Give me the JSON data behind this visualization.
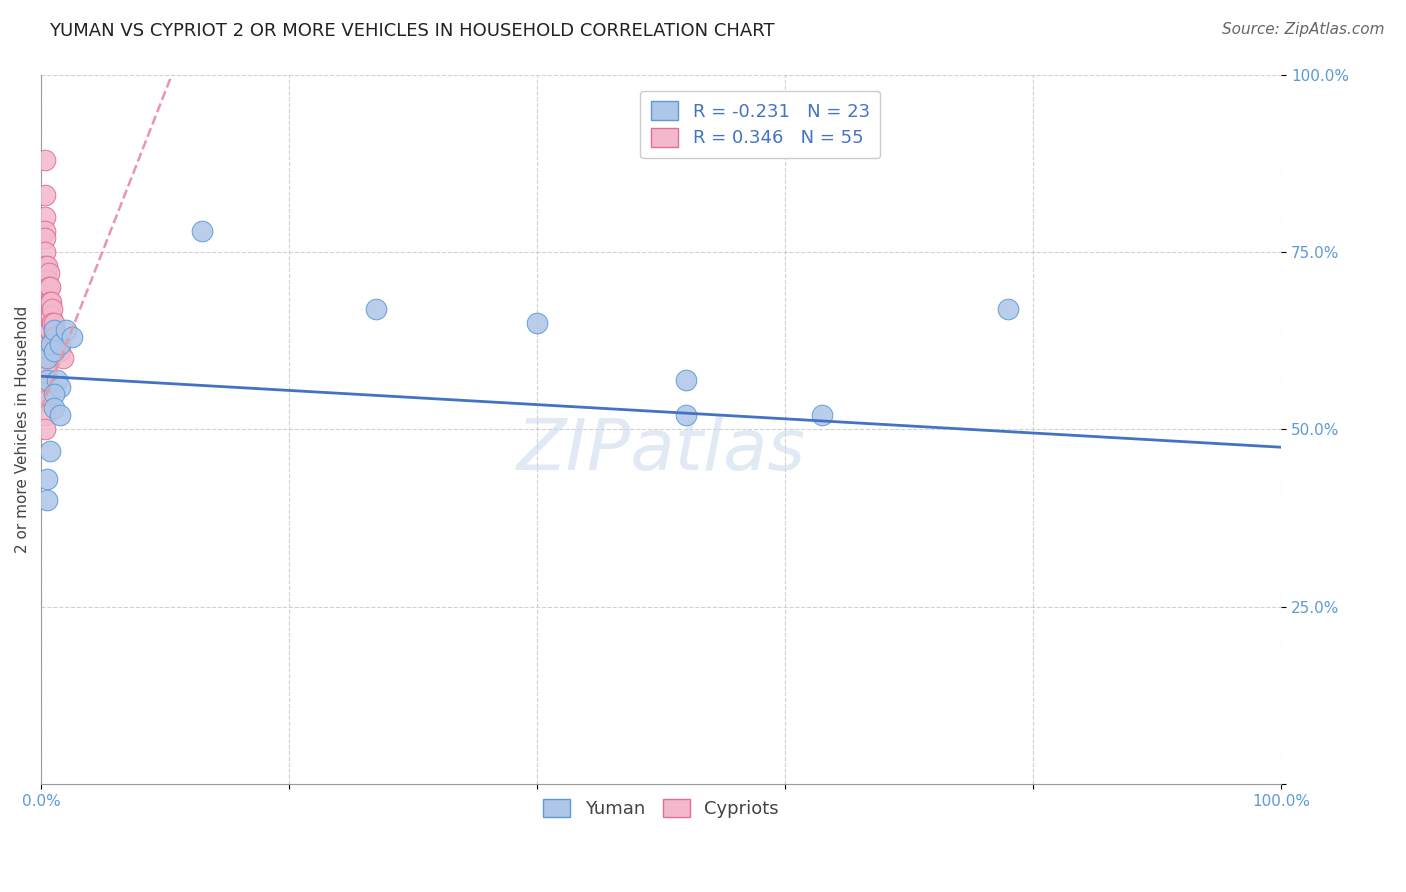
{
  "title": "YUMAN VS CYPRIOT 2 OR MORE VEHICLES IN HOUSEHOLD CORRELATION CHART",
  "source": "Source: ZipAtlas.com",
  "ylabel": "2 or more Vehicles in Household",
  "watermark": "ZIPatlas",
  "yuman_R": -0.231,
  "yuman_N": 23,
  "cypriot_R": 0.346,
  "cypriot_N": 55,
  "yuman_color": "#aec6e8",
  "cypriot_color": "#f4b8cc",
  "yuman_edge_color": "#5b9bd5",
  "cypriot_edge_color": "#e07090",
  "yuman_line_color": "#4472c4",
  "cypriot_line_color": "#e896a8",
  "legend_text_color": "#4472c4",
  "tick_color": "#5b9bd5",
  "title_color": "#222222",
  "source_color": "#666666",
  "ylabel_color": "#444444",
  "grid_color": "#cccccc",
  "xlim": [
    0.0,
    1.0
  ],
  "ylim": [
    0.0,
    1.0
  ],
  "yuman_x": [
    0.005,
    0.005,
    0.008,
    0.01,
    0.01,
    0.013,
    0.015,
    0.015,
    0.02,
    0.025,
    0.13,
    0.27,
    0.4,
    0.52,
    0.52,
    0.63,
    0.78,
    0.005,
    0.005,
    0.007,
    0.01,
    0.01,
    0.015
  ],
  "yuman_y": [
    0.6,
    0.57,
    0.62,
    0.64,
    0.61,
    0.57,
    0.62,
    0.56,
    0.64,
    0.63,
    0.78,
    0.67,
    0.65,
    0.57,
    0.52,
    0.52,
    0.67,
    0.43,
    0.4,
    0.47,
    0.55,
    0.53,
    0.52
  ],
  "cypriot_x": [
    0.003,
    0.003,
    0.003,
    0.003,
    0.003,
    0.003,
    0.003,
    0.003,
    0.003,
    0.003,
    0.003,
    0.003,
    0.003,
    0.003,
    0.003,
    0.003,
    0.003,
    0.003,
    0.003,
    0.003,
    0.004,
    0.004,
    0.004,
    0.004,
    0.004,
    0.004,
    0.004,
    0.004,
    0.005,
    0.005,
    0.005,
    0.005,
    0.005,
    0.005,
    0.005,
    0.005,
    0.006,
    0.006,
    0.006,
    0.006,
    0.006,
    0.007,
    0.007,
    0.007,
    0.007,
    0.008,
    0.008,
    0.009,
    0.009,
    0.01,
    0.01,
    0.012,
    0.013,
    0.015,
    0.018
  ],
  "cypriot_y": [
    0.88,
    0.83,
    0.8,
    0.78,
    0.77,
    0.75,
    0.73,
    0.72,
    0.7,
    0.68,
    0.67,
    0.65,
    0.63,
    0.61,
    0.59,
    0.57,
    0.56,
    0.54,
    0.52,
    0.5,
    0.72,
    0.7,
    0.68,
    0.66,
    0.64,
    0.62,
    0.6,
    0.58,
    0.73,
    0.71,
    0.69,
    0.67,
    0.65,
    0.63,
    0.61,
    0.59,
    0.72,
    0.7,
    0.68,
    0.66,
    0.64,
    0.7,
    0.68,
    0.66,
    0.64,
    0.68,
    0.66,
    0.67,
    0.65,
    0.65,
    0.63,
    0.63,
    0.62,
    0.61,
    0.6
  ],
  "yuman_trendline": [
    0.0,
    1.0,
    0.575,
    0.475
  ],
  "cypriot_trendline_x": [
    0.0,
    0.11
  ],
  "cypriot_trendline_y": [
    0.53,
    1.02
  ],
  "title_fontsize": 13,
  "label_fontsize": 11,
  "tick_fontsize": 11,
  "legend_fontsize": 13,
  "source_fontsize": 11
}
